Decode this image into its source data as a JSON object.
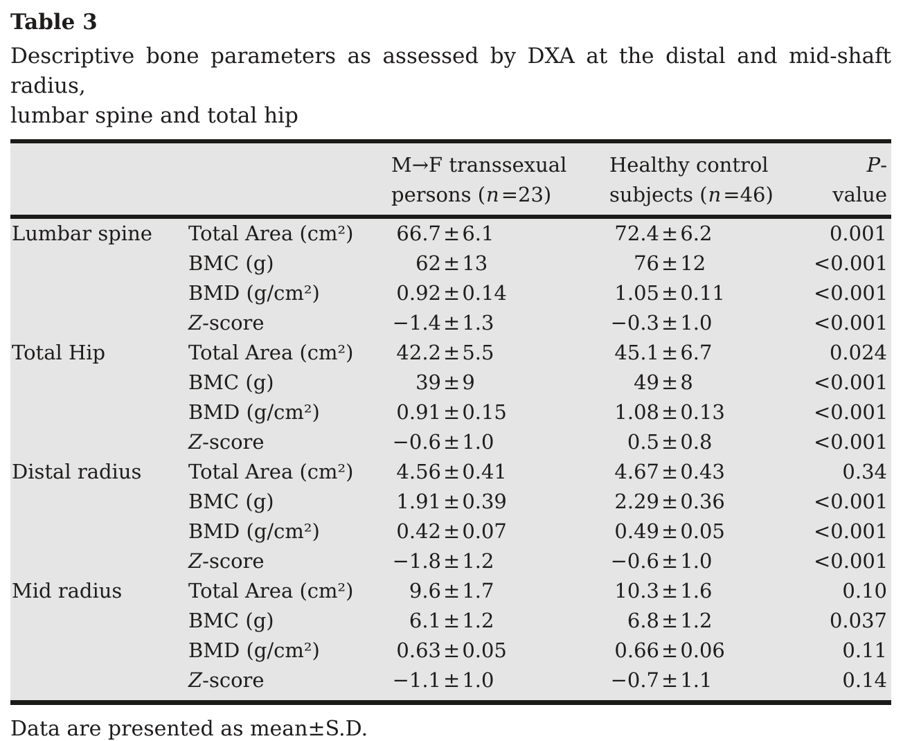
{
  "page": {
    "title": "Table 3",
    "caption_line1": "Descriptive bone parameters as assessed by DXA at the distal and mid-shaft radius,",
    "caption_line2": "lumbar spine and total hip",
    "footnote": "Data are presented as mean±S.D."
  },
  "symbols": {
    "pm": "±"
  },
  "colors": {
    "table_background": "#e4e5e4",
    "rule": "#1a1a18",
    "text": "#1f1c1c"
  },
  "table": {
    "header": {
      "col3_line1": "M→F transsexual",
      "col3_line2_pre": "persons (",
      "col3_line2_n": "n",
      "col3_line2_post": "=23)",
      "col4_line1": "Healthy control",
      "col4_line2_pre": "subjects (",
      "col4_line2_n": "n",
      "col4_line2_post": "=46)",
      "col5_italic": "P",
      "col5_rest": "-value"
    },
    "rows": [
      {
        "region": "Lumbar spine",
        "param_it": "",
        "param": "Total Area (cm²)",
        "tf_mean": "66.7",
        "tf_sd": "6.1",
        "hc_mean": "72.4",
        "hc_sd": "6.2",
        "p": "0.001"
      },
      {
        "region": "",
        "param_it": "",
        "param": "BMC (g)",
        "tf_mean": "62",
        "tf_sd": "13",
        "hc_mean": "76",
        "hc_sd": "12",
        "p": "<0.001"
      },
      {
        "region": "",
        "param_it": "",
        "param": "BMD (g/cm²)",
        "tf_mean": "0.92",
        "tf_sd": "0.14",
        "hc_mean": "1.05",
        "hc_sd": "0.11",
        "p": "<0.001"
      },
      {
        "region": "",
        "param_it": "Z",
        "param": "-score",
        "tf_mean": "−1.4",
        "tf_sd": "1.3",
        "hc_mean": "−0.3",
        "hc_sd": "1.0",
        "p": "<0.001"
      },
      {
        "region": "Total Hip",
        "param_it": "",
        "param": "Total Area (cm²)",
        "tf_mean": "42.2",
        "tf_sd": "5.5",
        "hc_mean": "45.1",
        "hc_sd": "6.7",
        "p": "0.024"
      },
      {
        "region": "",
        "param_it": "",
        "param": "BMC (g)",
        "tf_mean": "39",
        "tf_sd": "9",
        "hc_mean": "49",
        "hc_sd": "8",
        "p": "<0.001"
      },
      {
        "region": "",
        "param_it": "",
        "param": "BMD (g/cm²)",
        "tf_mean": "0.91",
        "tf_sd": "0.15",
        "hc_mean": "1.08",
        "hc_sd": "0.13",
        "p": "<0.001"
      },
      {
        "region": "",
        "param_it": "Z",
        "param": "-score",
        "tf_mean": "−0.6",
        "tf_sd": "1.0",
        "hc_mean": "0.5",
        "hc_sd": "0.8",
        "p": "<0.001"
      },
      {
        "region": "Distal radius",
        "param_it": "",
        "param": "Total Area (cm²)",
        "tf_mean": "4.56",
        "tf_sd": "0.41",
        "hc_mean": "4.67",
        "hc_sd": "0.43",
        "p": "0.34"
      },
      {
        "region": "",
        "param_it": "",
        "param": "BMC (g)",
        "tf_mean": "1.91",
        "tf_sd": "0.39",
        "hc_mean": "2.29",
        "hc_sd": "0.36",
        "p": "<0.001"
      },
      {
        "region": "",
        "param_it": "",
        "param": "BMD (g/cm²)",
        "tf_mean": "0.42",
        "tf_sd": "0.07",
        "hc_mean": "0.49",
        "hc_sd": "0.05",
        "p": "<0.001"
      },
      {
        "region": "",
        "param_it": "Z",
        "param": "-score",
        "tf_mean": "−1.8",
        "tf_sd": "1.2",
        "hc_mean": "−0.6",
        "hc_sd": "1.0",
        "p": "<0.001"
      },
      {
        "region": "Mid radius",
        "param_it": "",
        "param": "Total Area (cm²)",
        "tf_mean": "9.6",
        "tf_sd": "1.7",
        "hc_mean": "10.3",
        "hc_sd": "1.6",
        "p": "0.10"
      },
      {
        "region": "",
        "param_it": "",
        "param": "BMC (g)",
        "tf_mean": "6.1",
        "tf_sd": "1.2",
        "hc_mean": "6.8",
        "hc_sd": "1.2",
        "p": "0.037"
      },
      {
        "region": "",
        "param_it": "",
        "param": "BMD (g/cm²)",
        "tf_mean": "0.63",
        "tf_sd": "0.05",
        "hc_mean": "0.66",
        "hc_sd": "0.06",
        "p": "0.11"
      },
      {
        "region": "",
        "param_it": "Z",
        "param": "-score",
        "tf_mean": "−1.1",
        "tf_sd": "1.0",
        "hc_mean": "−0.7",
        "hc_sd": "1.1",
        "p": "0.14"
      }
    ]
  }
}
